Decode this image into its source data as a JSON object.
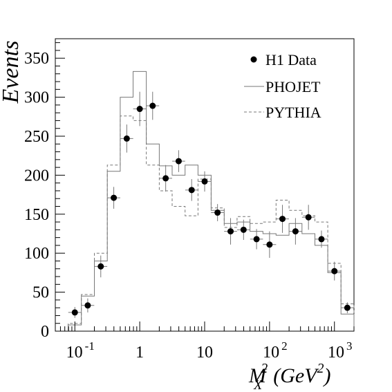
{
  "chart_data": {
    "type": "line",
    "title": "",
    "ylabel": "Events",
    "xlabel_main": "M",
    "xlabel_sub": "X",
    "xlabel_sup": "2",
    "xlabel_unit_open": "(GeV",
    "xlabel_unit_sup": "2",
    "xlabel_unit_close": ")",
    "xscale": "log",
    "xlim": [
      0.05,
      2000
    ],
    "ylim": [
      0,
      375
    ],
    "grid": false,
    "legend_position": "top-right",
    "x_ticks": [
      {
        "value": 0.1,
        "base": "10",
        "exp": "-1"
      },
      {
        "value": 1,
        "base": "1",
        "exp": ""
      },
      {
        "value": 10,
        "base": "10",
        "exp": ""
      },
      {
        "value": 100,
        "base": "10",
        "exp": "2"
      },
      {
        "value": 1000,
        "base": "10",
        "exp": "3"
      }
    ],
    "y_ticks": [
      {
        "value": 0,
        "label": "0"
      },
      {
        "value": 50,
        "label": "50"
      },
      {
        "value": 100,
        "label": "100"
      },
      {
        "value": 150,
        "label": "150"
      },
      {
        "value": 200,
        "label": "200"
      },
      {
        "value": 250,
        "label": "250"
      },
      {
        "value": 300,
        "label": "300"
      },
      {
        "value": 350,
        "label": "350"
      }
    ],
    "bin_edges": [
      0.079,
      0.126,
      0.2,
      0.316,
      0.5,
      0.79,
      1.26,
      2.0,
      3.16,
      5.0,
      7.9,
      12.6,
      20,
      31.6,
      50,
      79,
      126,
      200,
      316,
      500,
      790,
      1260,
      2000
    ],
    "series": [
      {
        "name": "H1 Data",
        "style": "points",
        "x": [
          0.1,
          0.158,
          0.251,
          0.398,
          0.631,
          1.0,
          1.58,
          2.51,
          3.98,
          6.31,
          10.0,
          15.8,
          25.1,
          39.8,
          63.1,
          100,
          158,
          251,
          398,
          631,
          1000,
          1580
        ],
        "y": [
          24,
          33,
          83,
          171,
          247,
          285,
          289,
          196,
          218,
          181,
          192,
          152,
          128,
          130,
          118,
          111,
          144,
          128,
          146,
          118,
          77,
          30
        ],
        "y_err": [
          7,
          9,
          14,
          14,
          18,
          22,
          18,
          17,
          14,
          14,
          13,
          11,
          17,
          13,
          13,
          17,
          18,
          17,
          16,
          11,
          12,
          7
        ]
      },
      {
        "name": "PHOJET",
        "style": "solid-step",
        "values": [
          8,
          45,
          90,
          205,
          300,
          333,
          240,
          212,
          200,
          213,
          200,
          155,
          138,
          140,
          128,
          125,
          123,
          138,
          125,
          110,
          75,
          22
        ]
      },
      {
        "name": "PYTHIA",
        "style": "dashed-step",
        "values": [
          10,
          47,
          100,
          213,
          276,
          270,
          213,
          180,
          160,
          148,
          195,
          158,
          133,
          147,
          138,
          140,
          168,
          155,
          148,
          140,
          87,
          35
        ]
      }
    ]
  }
}
